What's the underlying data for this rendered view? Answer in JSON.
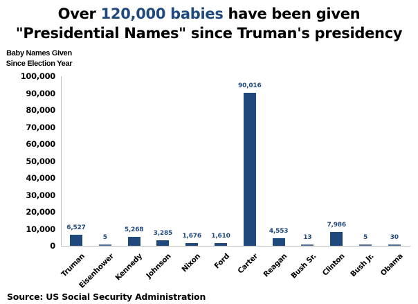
{
  "title": {
    "line1_pre": "Over ",
    "line1_highlight": "120,000 babies",
    "line1_post": " have been given",
    "line2": "\"Presidential Names\" since Truman's presidency",
    "highlight_color": "#1f497d"
  },
  "y_axis_label": {
    "line1": "Baby Names Given",
    "line2": "Since Election Year"
  },
  "source": "Source: US Social Security Administration",
  "chart_data": {
    "type": "bar",
    "title": "Over 120,000 babies have been given \"Presidential Names\" since Truman's presidency",
    "xlabel": "",
    "ylabel": "Baby Names Given Since Election Year",
    "ylim": [
      0,
      100000
    ],
    "yticks": [
      "0",
      "10,000",
      "20,000",
      "30,000",
      "40,000",
      "50,000",
      "60,000",
      "70,000",
      "80,000",
      "90,000",
      "100,000"
    ],
    "grid": false,
    "legend": null,
    "bar_color": "#1f497d",
    "categories": [
      "Truman",
      "Eisenhower",
      "Kennedy",
      "Johnson",
      "Nixon",
      "Ford",
      "Carter",
      "Reagan",
      "Bush Sr.",
      "Clinton",
      "Bush Jr.",
      "Obama"
    ],
    "values": [
      6527,
      5,
      5268,
      3285,
      1676,
      1610,
      90016,
      4553,
      13,
      7986,
      5,
      30
    ],
    "value_labels": [
      "6,527",
      "5",
      "5,268",
      "3,285",
      "1,676",
      "1,610",
      "90,016",
      "4,553",
      "13",
      "7,986",
      "5",
      "30"
    ],
    "annotation": "Source: US Social Security Administration"
  }
}
